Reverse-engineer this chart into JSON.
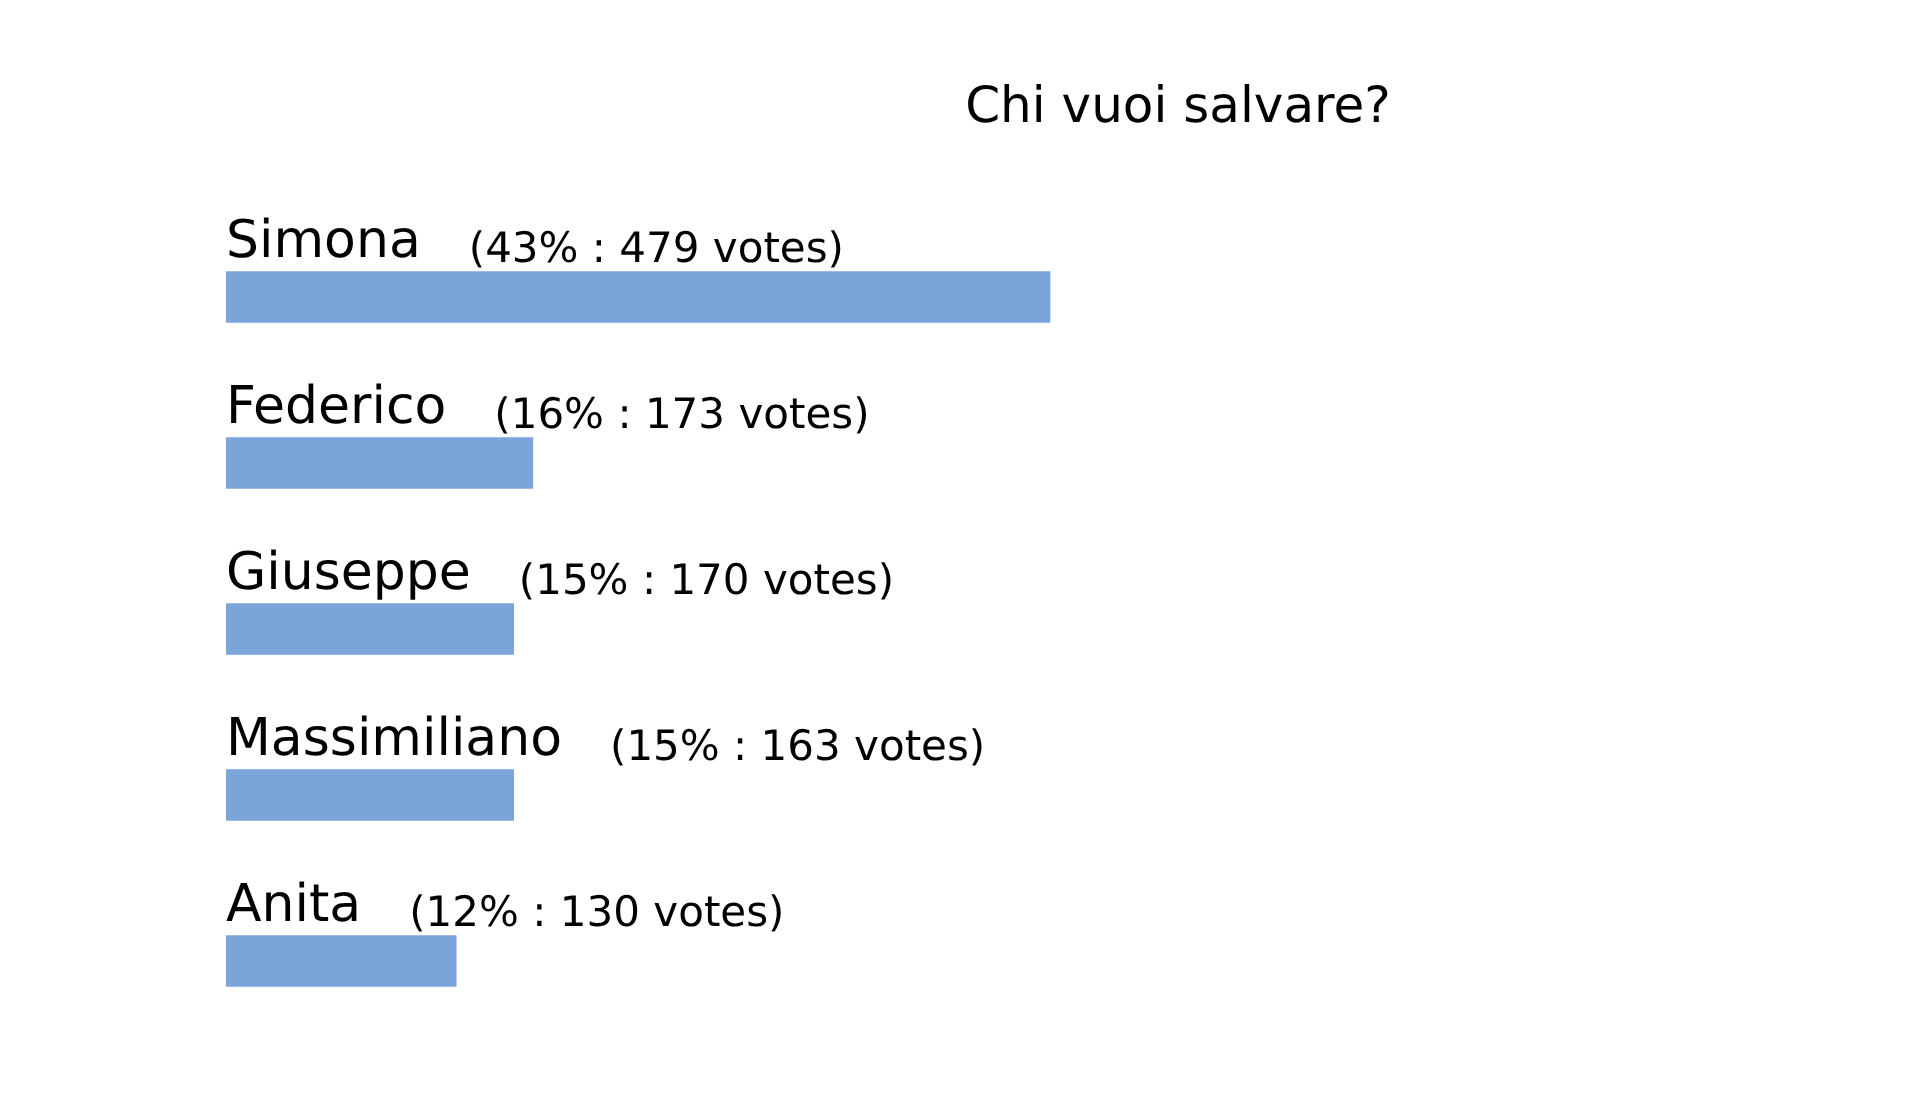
{
  "chart_data": {
    "type": "bar",
    "title": "Chi vuoi salvare?",
    "orientation": "horizontal",
    "categories": [
      "Simona",
      "Federico",
      "Giuseppe",
      "Massimiliano",
      "Anita"
    ],
    "values": [
      43,
      16,
      15,
      15,
      12
    ],
    "value_labels": [
      "(43% : 479 votes)",
      "(16% : 173 votes)",
      "(15% : 170 votes)",
      "(15% : 163 votes)",
      "(12% : 130 votes)"
    ],
    "color": "#7ba4da",
    "tick_labels": "y"
  }
}
